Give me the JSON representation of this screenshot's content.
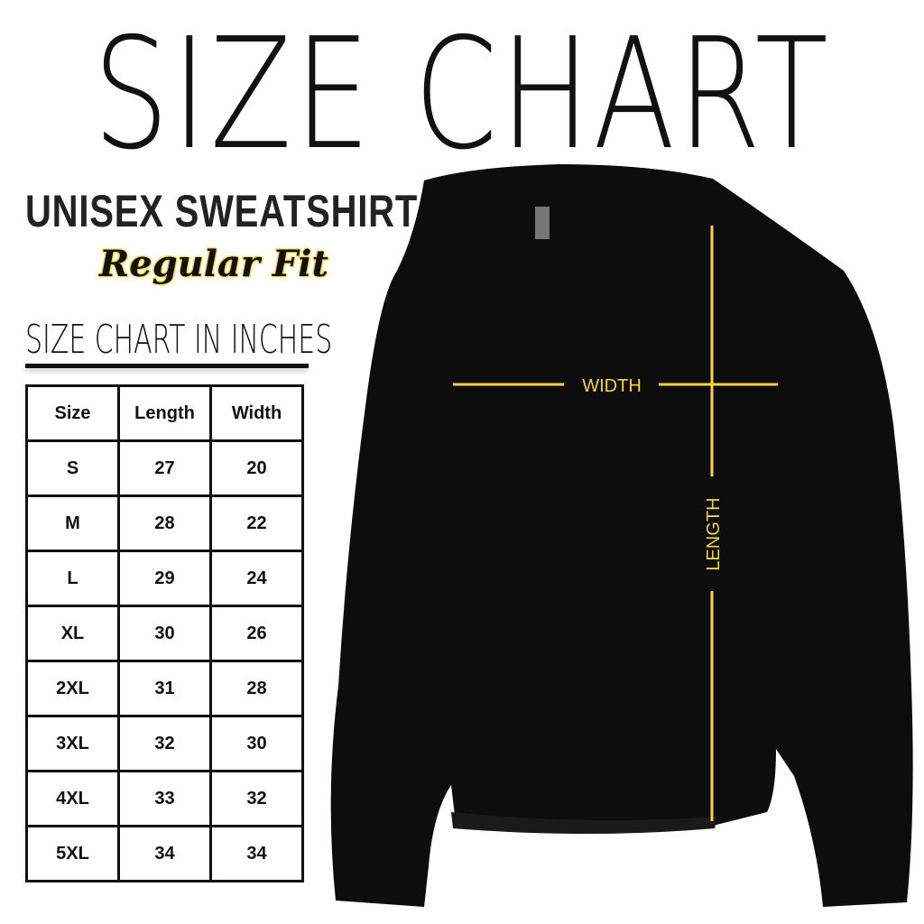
{
  "title": "SIZE CHART",
  "product": "UNISEX SWEATSHIRT",
  "fit": "Regular Fit",
  "subtitle": "SIZE CHART IN INCHES",
  "table": {
    "headers": [
      "Size",
      "Length",
      "Width"
    ],
    "rows": [
      [
        "S",
        "27",
        "20"
      ],
      [
        "M",
        "28",
        "22"
      ],
      [
        "L",
        "29",
        "24"
      ],
      [
        "XL",
        "30",
        "26"
      ],
      [
        "2XL",
        "31",
        "28"
      ],
      [
        "3XL",
        "32",
        "30"
      ],
      [
        "4XL",
        "33",
        "32"
      ],
      [
        "5XL",
        "34",
        "34"
      ]
    ]
  },
  "measure": {
    "width_label": "WIDTH",
    "length_label": "LENGTH",
    "color": "#f5d63d"
  },
  "garment_color": "#0d0d0d"
}
